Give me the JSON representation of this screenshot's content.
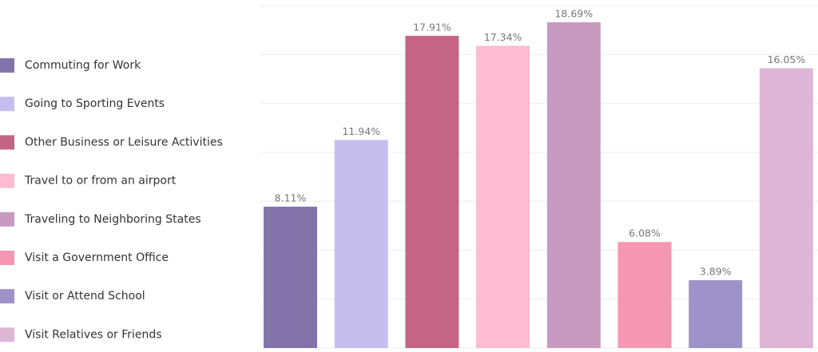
{
  "chart_data": {
    "type": "bar",
    "categories": [
      "Commuting for Work",
      "Going to Sporting Events",
      "Other Business or Leisure Activities",
      "Travel to or from an airport",
      "Traveling to Neighboring States",
      "Visit a Government Office",
      "Visit or Attend School",
      "Visit Relatives or Friends"
    ],
    "values": [
      8.11,
      11.94,
      17.91,
      17.34,
      18.69,
      6.08,
      3.89,
      16.05
    ],
    "value_labels": [
      "8.11%",
      "11.94%",
      "17.91%",
      "17.34%",
      "18.69%",
      "6.08%",
      "3.89%",
      "16.05%"
    ],
    "colors": [
      "#8274aa",
      "#c6bfee",
      "#c46586",
      "#fdbcd2",
      "#c89abf",
      "#f596b3",
      "#9d93c9",
      "#ddb6d6"
    ],
    "ylim": [
      0,
      19.6
    ],
    "grid": true,
    "legend": "left"
  }
}
